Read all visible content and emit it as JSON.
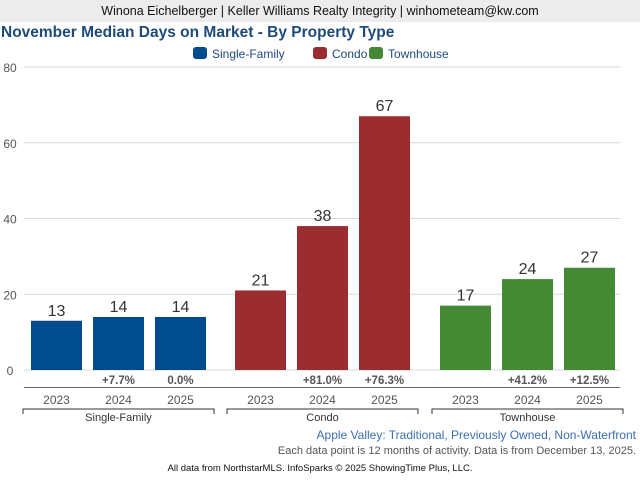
{
  "header": {
    "agent_line": "Winona Eichelberger | Keller Williams Realty Integrity | winhometeam@kw.com"
  },
  "subtitle": "Apple Valley: Traditional, Previously Owned, Non-Waterfront",
  "note": "Each data point is 12 months of activity. Data is from December 13, 2025.",
  "footer": "All data from NorthstarMLS. InfoSparks © 2025 ShowingTime Plus, LLC.",
  "chart_data": {
    "type": "bar",
    "title": "November Median Days on Market - By Property Type",
    "xlabel": "",
    "ylabel": "",
    "ylim": [
      0,
      80
    ],
    "yticks": [
      0,
      20,
      40,
      60,
      80
    ],
    "grid": true,
    "legend_position": "top-center",
    "legend": [
      "Single-Family",
      "Condo",
      "Townhouse"
    ],
    "groups": [
      {
        "name": "Single-Family",
        "color": "#004b8d",
        "categories": [
          "2023",
          "2024",
          "2025"
        ],
        "values": [
          13,
          14,
          14
        ],
        "changes": [
          "",
          "+7.7%",
          "0.0%"
        ]
      },
      {
        "name": "Condo",
        "color": "#9b2d30",
        "categories": [
          "2023",
          "2024",
          "2025"
        ],
        "values": [
          21,
          38,
          67
        ],
        "changes": [
          "",
          "+81.0%",
          "+76.3%"
        ]
      },
      {
        "name": "Townhouse",
        "color": "#448a35",
        "categories": [
          "2023",
          "2024",
          "2025"
        ],
        "values": [
          17,
          24,
          27
        ],
        "changes": [
          "",
          "+41.2%",
          "+12.5%"
        ]
      }
    ]
  }
}
